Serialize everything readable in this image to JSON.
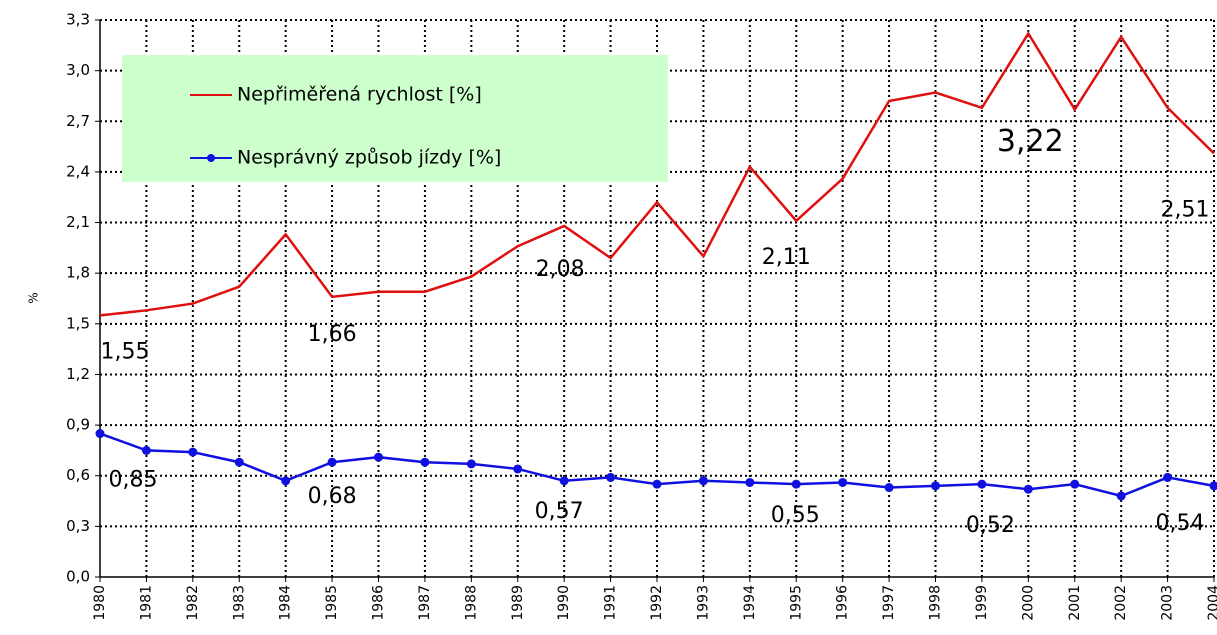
{
  "chart_data": {
    "type": "line",
    "y_label": "%",
    "categories": [
      "1980",
      "1981",
      "1982",
      "1983",
      "1984",
      "1985",
      "1986",
      "1987",
      "1988",
      "1989",
      "1990",
      "1991",
      "1992",
      "1993",
      "1994",
      "1995",
      "1996",
      "1997",
      "1998",
      "1999",
      "2000",
      "2001",
      "2002",
      "2003",
      "2004"
    ],
    "series": [
      {
        "name": "Nepřiměřená rychlost [%]",
        "color": "#e01010",
        "marker": false,
        "values": [
          1.55,
          1.58,
          1.62,
          1.72,
          2.03,
          1.66,
          1.69,
          1.69,
          1.78,
          1.96,
          2.08,
          1.89,
          2.22,
          1.9,
          2.43,
          2.11,
          2.36,
          2.82,
          2.87,
          2.78,
          3.22,
          2.77,
          3.2,
          2.78,
          2.51
        ],
        "value_labels": [
          "1,55",
          null,
          null,
          null,
          null,
          "1,66",
          null,
          null,
          null,
          null,
          "2,08",
          null,
          null,
          null,
          null,
          "2,11",
          null,
          null,
          null,
          null,
          "3,22",
          null,
          null,
          null,
          "2,51"
        ]
      },
      {
        "name": "Nesprávný způsob jízdy  [%]",
        "color": "#1010e0",
        "marker": true,
        "values": [
          0.85,
          0.75,
          0.74,
          0.68,
          0.57,
          0.68,
          0.71,
          0.68,
          0.67,
          0.64,
          0.57,
          0.59,
          0.55,
          0.57,
          0.56,
          0.55,
          0.56,
          0.53,
          0.54,
          0.55,
          0.52,
          0.55,
          0.48,
          0.59,
          0.54
        ],
        "value_labels": [
          "0,85",
          null,
          null,
          null,
          null,
          "0,68",
          null,
          null,
          null,
          null,
          "0,57",
          null,
          null,
          null,
          null,
          "0,55",
          null,
          null,
          null,
          null,
          "0,52",
          null,
          null,
          null,
          "0,54"
        ]
      }
    ],
    "ylim": [
      0,
      3.3
    ],
    "yticks": [
      {
        "value": 0,
        "label": "0,0"
      },
      {
        "value": 0.3,
        "label": "0,3"
      },
      {
        "value": 0.6,
        "label": "0,6"
      },
      {
        "value": 0.9,
        "label": "0,9"
      },
      {
        "value": 1.2,
        "label": "1,2"
      },
      {
        "value": 1.5,
        "label": "1,5"
      },
      {
        "value": 1.8,
        "label": "1,8"
      },
      {
        "value": 2.1,
        "label": "2,1"
      },
      {
        "value": 2.4,
        "label": "2,4"
      },
      {
        "value": 2.7,
        "label": "2,7"
      },
      {
        "value": 3.0,
        "label": "3,0"
      },
      {
        "value": 3.3,
        "label": "3,3"
      }
    ],
    "grid": true
  }
}
